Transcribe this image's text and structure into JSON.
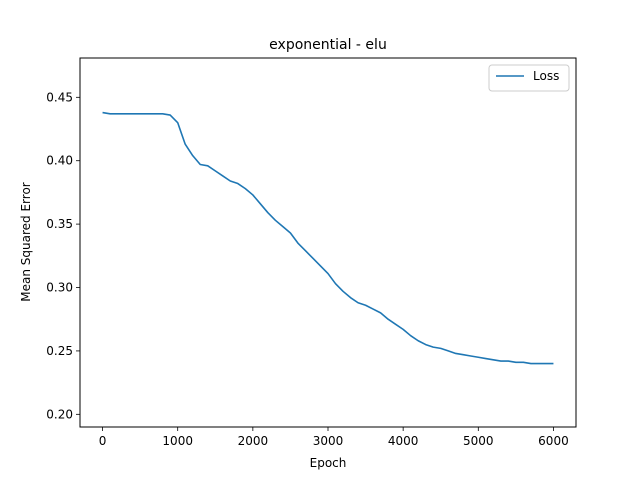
{
  "chart_data": {
    "type": "line",
    "title": "exponential - elu",
    "xlabel": "Epoch",
    "ylabel": "Mean Squared Error",
    "xlim": [
      -300,
      6300
    ],
    "ylim": [
      0.19,
      0.481
    ],
    "xticks": [
      0,
      1000,
      2000,
      3000,
      4000,
      5000,
      6000
    ],
    "yticks": [
      0.2,
      0.25,
      0.3,
      0.35,
      0.4,
      0.45
    ],
    "xtick_labels": [
      "0",
      "1000",
      "2000",
      "3000",
      "4000",
      "5000",
      "6000"
    ],
    "ytick_labels": [
      "0.20",
      "0.25",
      "0.30",
      "0.35",
      "0.40",
      "0.45"
    ],
    "grid": false,
    "legend": {
      "position": "top-right"
    },
    "series": [
      {
        "name": "Loss",
        "color": "#1f77b4",
        "x": [
          0,
          100,
          200,
          300,
          400,
          500,
          600,
          700,
          800,
          900,
          1000,
          1100,
          1200,
          1300,
          1400,
          1500,
          1600,
          1700,
          1800,
          1900,
          2000,
          2100,
          2200,
          2300,
          2400,
          2500,
          2600,
          2700,
          2800,
          2900,
          3000,
          3100,
          3200,
          3300,
          3400,
          3500,
          3600,
          3700,
          3800,
          3900,
          4000,
          4100,
          4200,
          4300,
          4400,
          4500,
          4600,
          4700,
          4800,
          4900,
          5000,
          5100,
          5200,
          5300,
          5400,
          5500,
          5600,
          5700,
          5800,
          5900,
          6000
        ],
        "values": [
          0.438,
          0.437,
          0.437,
          0.437,
          0.437,
          0.437,
          0.437,
          0.437,
          0.437,
          0.436,
          0.43,
          0.413,
          0.404,
          0.397,
          0.396,
          0.392,
          0.388,
          0.384,
          0.382,
          0.378,
          0.373,
          0.366,
          0.359,
          0.353,
          0.348,
          0.343,
          0.335,
          0.329,
          0.323,
          0.317,
          0.311,
          0.303,
          0.297,
          0.292,
          0.288,
          0.286,
          0.283,
          0.28,
          0.275,
          0.271,
          0.267,
          0.262,
          0.258,
          0.255,
          0.253,
          0.252,
          0.25,
          0.248,
          0.247,
          0.246,
          0.245,
          0.244,
          0.243,
          0.242,
          0.242,
          0.241,
          0.241,
          0.24,
          0.24,
          0.24,
          0.24
        ]
      }
    ]
  }
}
